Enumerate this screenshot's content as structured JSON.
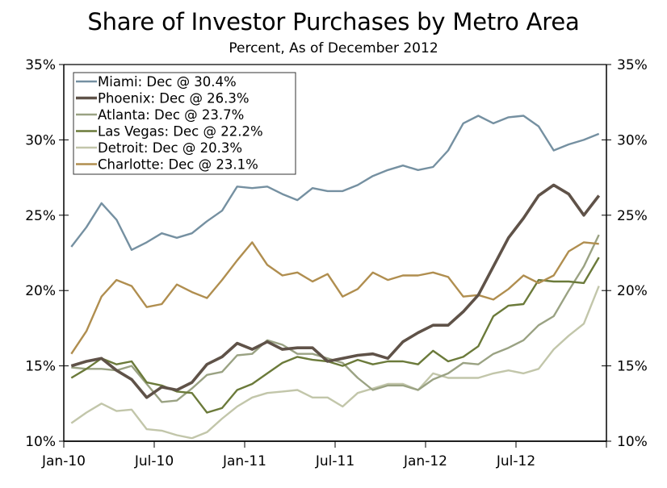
{
  "chart_data": {
    "type": "line",
    "title": "Share of Investor Purchases by Metro Area",
    "subtitle": "Percent, As of December 2012",
    "xlabel": "",
    "ylabel": "",
    "ylim": [
      10,
      35
    ],
    "y_ticks": [
      "10%",
      "15%",
      "20%",
      "25%",
      "30%",
      "35%"
    ],
    "y_tick_values": [
      10,
      15,
      20,
      25,
      30,
      35
    ],
    "x_tick_labels": [
      "Jan-10",
      "Jul-10",
      "Jan-11",
      "Jul-11",
      "Jan-12",
      "Jul-12"
    ],
    "x": [
      "Jan-10",
      "Feb-10",
      "Mar-10",
      "Apr-10",
      "May-10",
      "Jun-10",
      "Jul-10",
      "Aug-10",
      "Sep-10",
      "Oct-10",
      "Nov-10",
      "Dec-10",
      "Jan-11",
      "Feb-11",
      "Mar-11",
      "Apr-11",
      "May-11",
      "Jun-11",
      "Jul-11",
      "Aug-11",
      "Sep-11",
      "Oct-11",
      "Nov-11",
      "Dec-11",
      "Jan-12",
      "Feb-12",
      "Mar-12",
      "Apr-12",
      "May-12",
      "Jun-12",
      "Jul-12",
      "Aug-12",
      "Sep-12",
      "Oct-12",
      "Nov-12",
      "Dec-12"
    ],
    "grid": false,
    "legend_position": "top-left",
    "series": [
      {
        "name": "Miami",
        "legend": "Miami: Dec @ 30.4%",
        "color": "#7590a1",
        "width": 2.4,
        "values": [
          22.9,
          24.2,
          25.8,
          24.7,
          22.7,
          23.2,
          23.8,
          23.5,
          23.8,
          24.6,
          25.3,
          26.9,
          26.8,
          26.9,
          26.4,
          26.0,
          26.8,
          26.6,
          26.6,
          27.0,
          27.6,
          28.0,
          28.3,
          28.0,
          28.2,
          29.3,
          31.1,
          31.6,
          31.1,
          31.5,
          31.6,
          30.9,
          29.3,
          29.7,
          30.0,
          30.4
        ]
      },
      {
        "name": "Phoenix",
        "legend": "Phoenix: Dec @ 26.3%",
        "color": "#5f5248",
        "width": 3.6,
        "values": [
          15.0,
          15.3,
          15.5,
          14.7,
          14.1,
          12.9,
          13.6,
          13.4,
          13.9,
          15.1,
          15.6,
          16.5,
          16.1,
          16.6,
          16.1,
          16.2,
          16.2,
          15.3,
          15.5,
          15.7,
          15.8,
          15.5,
          16.6,
          17.2,
          17.7,
          17.7,
          18.6,
          19.7,
          21.6,
          23.5,
          24.8,
          26.3,
          27.0,
          26.4,
          25.0,
          26.3
        ]
      },
      {
        "name": "Atlanta",
        "legend": "Atlanta: Dec @ 23.7%",
        "color": "#9aa283",
        "width": 2.4,
        "values": [
          14.9,
          14.8,
          14.8,
          14.7,
          15.0,
          13.8,
          12.6,
          12.7,
          13.5,
          14.4,
          14.6,
          15.7,
          15.8,
          16.7,
          16.4,
          15.8,
          15.8,
          15.5,
          15.2,
          14.2,
          13.4,
          13.7,
          13.7,
          13.4,
          14.1,
          14.5,
          15.2,
          15.1,
          15.8,
          16.2,
          16.7,
          17.7,
          18.3,
          20.0,
          21.6,
          23.7
        ]
      },
      {
        "name": "Las Vegas",
        "legend": "Las Vegas: Dec @ 22.2%",
        "color": "#6b7a3a",
        "width": 2.4,
        "values": [
          14.2,
          14.8,
          15.5,
          15.1,
          15.3,
          13.9,
          13.7,
          13.3,
          13.2,
          11.9,
          12.2,
          13.4,
          13.8,
          14.5,
          15.2,
          15.6,
          15.4,
          15.3,
          15.0,
          15.4,
          15.1,
          15.3,
          15.3,
          15.1,
          16.0,
          15.3,
          15.6,
          16.3,
          18.3,
          19.0,
          19.1,
          20.7,
          20.6,
          20.6,
          20.5,
          22.2
        ]
      },
      {
        "name": "Detroit",
        "legend": "Detroit: Dec @ 20.3%",
        "color": "#c2c6aa",
        "width": 2.4,
        "values": [
          11.2,
          11.9,
          12.5,
          12.0,
          12.1,
          10.8,
          10.7,
          10.4,
          10.2,
          10.6,
          11.5,
          12.3,
          12.9,
          13.2,
          13.3,
          13.4,
          12.9,
          12.9,
          12.3,
          13.2,
          13.5,
          13.8,
          13.8,
          13.4,
          14.5,
          14.2,
          14.2,
          14.2,
          14.5,
          14.7,
          14.5,
          14.8,
          16.1,
          17.0,
          17.8,
          20.3
        ]
      },
      {
        "name": "Charlotte",
        "legend": "Charlotte: Dec @ 23.1%",
        "color": "#b08e4f",
        "width": 2.4,
        "values": [
          15.8,
          17.3,
          19.6,
          20.7,
          20.3,
          18.9,
          19.1,
          20.4,
          19.9,
          19.5,
          20.7,
          22.0,
          23.2,
          21.7,
          21.0,
          21.2,
          20.6,
          21.1,
          19.6,
          20.1,
          21.2,
          20.7,
          21.0,
          21.0,
          21.2,
          20.9,
          19.6,
          19.7,
          19.4,
          20.1,
          21.0,
          20.5,
          21.0,
          22.6,
          23.2,
          23.1
        ]
      }
    ]
  }
}
